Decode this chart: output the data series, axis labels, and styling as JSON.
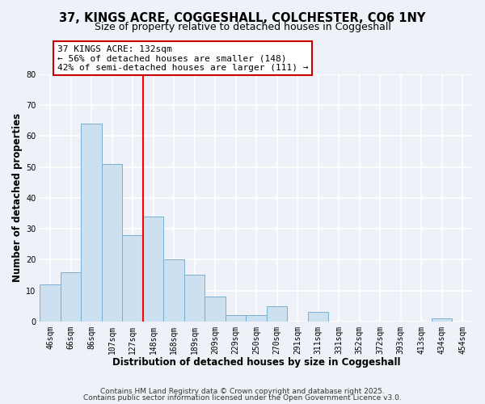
{
  "title1": "37, KINGS ACRE, COGGESHALL, COLCHESTER, CO6 1NY",
  "title2": "Size of property relative to detached houses in Coggeshall",
  "xlabel": "Distribution of detached houses by size in Coggeshall",
  "ylabel": "Number of detached properties",
  "bin_labels": [
    "46sqm",
    "66sqm",
    "86sqm",
    "107sqm",
    "127sqm",
    "148sqm",
    "168sqm",
    "189sqm",
    "209sqm",
    "229sqm",
    "250sqm",
    "270sqm",
    "291sqm",
    "311sqm",
    "331sqm",
    "352sqm",
    "372sqm",
    "393sqm",
    "413sqm",
    "434sqm",
    "454sqm"
  ],
  "bar_heights": [
    12,
    16,
    64,
    51,
    28,
    34,
    20,
    15,
    8,
    2,
    2,
    5,
    0,
    3,
    0,
    0,
    0,
    0,
    0,
    1,
    0
  ],
  "bar_color": "#cce0f0",
  "bar_edgecolor": "#7ab0d4",
  "vline_x_idx": 4.5,
  "vline_color": "red",
  "annotation_text": "37 KINGS ACRE: 132sqm\n← 56% of detached houses are smaller (148)\n42% of semi-detached houses are larger (111) →",
  "ylim": [
    0,
    80
  ],
  "yticks": [
    0,
    10,
    20,
    30,
    40,
    50,
    60,
    70,
    80
  ],
  "footnote1": "Contains HM Land Registry data © Crown copyright and database right 2025.",
  "footnote2": "Contains public sector information licensed under the Open Government Licence v3.0.",
  "background_color": "#eef2f8",
  "grid_color": "#ffffff",
  "title_fontsize": 10.5,
  "subtitle_fontsize": 9,
  "axis_label_fontsize": 8.5,
  "tick_fontsize": 7,
  "annotation_fontsize": 8,
  "footnote_fontsize": 6.5
}
